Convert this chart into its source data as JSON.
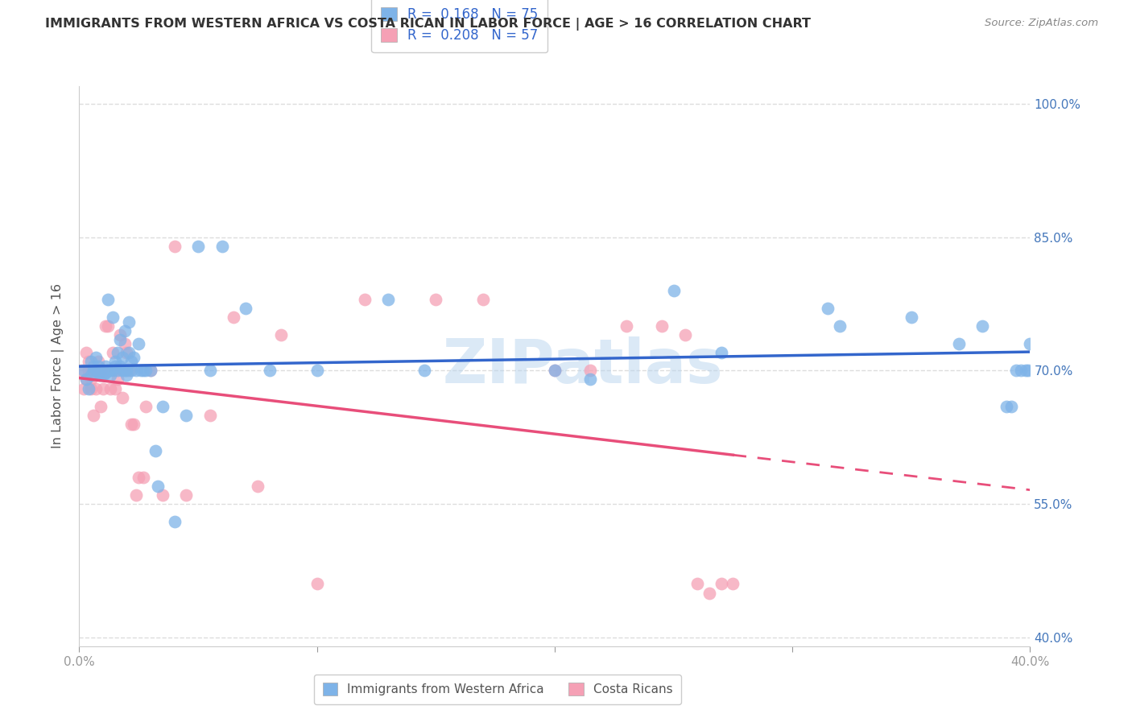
{
  "title": "IMMIGRANTS FROM WESTERN AFRICA VS COSTA RICAN IN LABOR FORCE | AGE > 16 CORRELATION CHART",
  "source": "Source: ZipAtlas.com",
  "ylabel": "In Labor Force | Age > 16",
  "xlim": [
    0.0,
    0.4
  ],
  "ylim": [
    0.39,
    1.02
  ],
  "yticks": [
    0.4,
    0.55,
    0.7,
    0.85,
    1.0
  ],
  "ytick_labels": [
    "40.0%",
    "55.0%",
    "70.0%",
    "85.0%",
    "100.0%"
  ],
  "xticks": [
    0.0,
    0.1,
    0.2,
    0.3,
    0.4
  ],
  "xtick_labels": [
    "0.0%",
    "",
    "",
    "",
    "40.0%"
  ],
  "blue_R": 0.168,
  "blue_N": 75,
  "pink_R": 0.208,
  "pink_N": 57,
  "blue_color": "#7EB3E8",
  "pink_color": "#F5A0B5",
  "blue_line_color": "#3366CC",
  "pink_line_color": "#E84E7A",
  "legend_label_blue": "Immigrants from Western Africa",
  "legend_label_pink": "Costa Ricans",
  "watermark": "ZIPatlas",
  "background_color": "#FFFFFF",
  "grid_color": "#DDDDDD",
  "axis_color": "#CCCCCC",
  "title_color": "#333333",
  "source_color": "#888888",
  "right_tick_color": "#4477BB",
  "blue_scatter_x": [
    0.002,
    0.003,
    0.004,
    0.005,
    0.005,
    0.006,
    0.006,
    0.007,
    0.007,
    0.008,
    0.008,
    0.009,
    0.009,
    0.01,
    0.01,
    0.011,
    0.011,
    0.012,
    0.012,
    0.013,
    0.013,
    0.014,
    0.014,
    0.015,
    0.015,
    0.016,
    0.016,
    0.017,
    0.017,
    0.018,
    0.018,
    0.019,
    0.019,
    0.02,
    0.02,
    0.021,
    0.021,
    0.022,
    0.022,
    0.023,
    0.024,
    0.025,
    0.026,
    0.027,
    0.028,
    0.03,
    0.032,
    0.033,
    0.035,
    0.04,
    0.045,
    0.05,
    0.055,
    0.06,
    0.07,
    0.08,
    0.1,
    0.13,
    0.145,
    0.2,
    0.215,
    0.25,
    0.27,
    0.315,
    0.32,
    0.35,
    0.37,
    0.38,
    0.39,
    0.392,
    0.394,
    0.396,
    0.398,
    0.399,
    0.4
  ],
  "blue_scatter_y": [
    0.7,
    0.69,
    0.68,
    0.695,
    0.71,
    0.7,
    0.705,
    0.7,
    0.715,
    0.698,
    0.705,
    0.7,
    0.695,
    0.7,
    0.695,
    0.705,
    0.698,
    0.78,
    0.7,
    0.7,
    0.695,
    0.7,
    0.76,
    0.705,
    0.71,
    0.7,
    0.72,
    0.705,
    0.735,
    0.7,
    0.715,
    0.7,
    0.745,
    0.7,
    0.695,
    0.72,
    0.755,
    0.7,
    0.71,
    0.715,
    0.7,
    0.73,
    0.7,
    0.7,
    0.7,
    0.7,
    0.61,
    0.57,
    0.66,
    0.53,
    0.65,
    0.84,
    0.7,
    0.84,
    0.77,
    0.7,
    0.7,
    0.78,
    0.7,
    0.7,
    0.69,
    0.79,
    0.72,
    0.77,
    0.75,
    0.76,
    0.73,
    0.75,
    0.66,
    0.66,
    0.7,
    0.7,
    0.7,
    0.7,
    0.73
  ],
  "pink_scatter_x": [
    0.001,
    0.002,
    0.003,
    0.003,
    0.004,
    0.004,
    0.005,
    0.005,
    0.006,
    0.006,
    0.007,
    0.007,
    0.008,
    0.008,
    0.009,
    0.009,
    0.01,
    0.01,
    0.011,
    0.012,
    0.013,
    0.014,
    0.015,
    0.015,
    0.016,
    0.017,
    0.018,
    0.019,
    0.02,
    0.021,
    0.022,
    0.023,
    0.024,
    0.025,
    0.027,
    0.028,
    0.03,
    0.035,
    0.04,
    0.045,
    0.055,
    0.065,
    0.075,
    0.085,
    0.1,
    0.12,
    0.15,
    0.17,
    0.2,
    0.215,
    0.23,
    0.245,
    0.255,
    0.26,
    0.265,
    0.27,
    0.275
  ],
  "pink_scatter_y": [
    0.7,
    0.68,
    0.72,
    0.69,
    0.71,
    0.7,
    0.69,
    0.68,
    0.7,
    0.65,
    0.7,
    0.68,
    0.695,
    0.71,
    0.66,
    0.7,
    0.68,
    0.7,
    0.75,
    0.75,
    0.68,
    0.72,
    0.68,
    0.7,
    0.69,
    0.74,
    0.67,
    0.73,
    0.72,
    0.7,
    0.64,
    0.64,
    0.56,
    0.58,
    0.58,
    0.66,
    0.7,
    0.56,
    0.84,
    0.56,
    0.65,
    0.76,
    0.57,
    0.74,
    0.46,
    0.78,
    0.78,
    0.78,
    0.7,
    0.7,
    0.75,
    0.75,
    0.74,
    0.46,
    0.45,
    0.46,
    0.46
  ]
}
